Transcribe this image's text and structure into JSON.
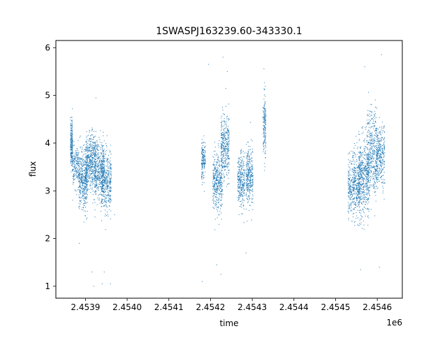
{
  "chart_data": {
    "type": "scatter",
    "title": "1SWASPJ163239.60-343330.1",
    "xlabel": "time",
    "ylabel": "flux",
    "x_offset_label": "1e6",
    "xlim": [
      2453829,
      2454660
    ],
    "ylim": [
      0.75,
      6.15
    ],
    "xticks": [
      {
        "value": 2453900,
        "label": "2.4539"
      },
      {
        "value": 2454000,
        "label": "2.4540"
      },
      {
        "value": 2454100,
        "label": "2.4541"
      },
      {
        "value": 2454200,
        "label": "2.4542"
      },
      {
        "value": 2454300,
        "label": "2.4543"
      },
      {
        "value": 2454400,
        "label": "2.4544"
      },
      {
        "value": 2454500,
        "label": "2.4545"
      },
      {
        "value": 2454600,
        "label": "2.4546"
      }
    ],
    "yticks": [
      {
        "value": 1,
        "label": "1"
      },
      {
        "value": 2,
        "label": "2"
      },
      {
        "value": 3,
        "label": "3"
      },
      {
        "value": 4,
        "label": "4"
      },
      {
        "value": 5,
        "label": "5"
      },
      {
        "value": 6,
        "label": "6"
      }
    ],
    "grid": false,
    "color": "#1f77b4",
    "marker": "small dots",
    "clusters": [
      {
        "t0": 2453864,
        "t1": 2453869,
        "center": 4.0,
        "spread": 0.25,
        "n": 220
      },
      {
        "t0": 2453869,
        "t1": 2453885,
        "center": 3.5,
        "spread": 0.2,
        "n": 180
      },
      {
        "t0": 2453884,
        "t1": 2453905,
        "center": 3.2,
        "spread": 0.3,
        "n": 420
      },
      {
        "t0": 2453900,
        "t1": 2453925,
        "center": 3.6,
        "spread": 0.3,
        "n": 480
      },
      {
        "t0": 2453922,
        "t1": 2453945,
        "center": 3.45,
        "spread": 0.3,
        "n": 420
      },
      {
        "t0": 2453938,
        "t1": 2453962,
        "center": 3.15,
        "spread": 0.32,
        "n": 420
      },
      {
        "t0": 2454178,
        "t1": 2454188,
        "center": 3.65,
        "spread": 0.2,
        "n": 160
      },
      {
        "t0": 2454205,
        "t1": 2454228,
        "center": 3.2,
        "spread": 0.3,
        "n": 380
      },
      {
        "t0": 2454225,
        "t1": 2454245,
        "center": 3.9,
        "spread": 0.35,
        "n": 380
      },
      {
        "t0": 2454265,
        "t1": 2454282,
        "center": 3.2,
        "spread": 0.28,
        "n": 300
      },
      {
        "t0": 2454285,
        "t1": 2454302,
        "center": 3.3,
        "spread": 0.3,
        "n": 320
      },
      {
        "t0": 2454326,
        "t1": 2454333,
        "center": 4.4,
        "spread": 0.35,
        "n": 160
      },
      {
        "t0": 2454530,
        "t1": 2454560,
        "center": 3.1,
        "spread": 0.35,
        "n": 480
      },
      {
        "t0": 2454555,
        "t1": 2454580,
        "center": 3.3,
        "spread": 0.4,
        "n": 480
      },
      {
        "t0": 2454575,
        "t1": 2454600,
        "center": 3.8,
        "spread": 0.45,
        "n": 420
      },
      {
        "t0": 2454598,
        "t1": 2454618,
        "center": 3.7,
        "spread": 0.3,
        "n": 320
      }
    ],
    "outliers": [
      {
        "x": 2453885,
        "y": 1.9
      },
      {
        "x": 2453915,
        "y": 1.3
      },
      {
        "x": 2453920,
        "y": 1.0
      },
      {
        "x": 2453925,
        "y": 4.95
      },
      {
        "x": 2453940,
        "y": 1.05
      },
      {
        "x": 2453945,
        "y": 1.3
      },
      {
        "x": 2453960,
        "y": 1.05
      },
      {
        "x": 2453970,
        "y": 2.5
      },
      {
        "x": 2454180,
        "y": 1.1
      },
      {
        "x": 2454195,
        "y": 5.65
      },
      {
        "x": 2454215,
        "y": 1.45
      },
      {
        "x": 2454225,
        "y": 1.25
      },
      {
        "x": 2454230,
        "y": 5.8
      },
      {
        "x": 2454240,
        "y": 5.5
      },
      {
        "x": 2454285,
        "y": 1.7
      },
      {
        "x": 2454570,
        "y": 5.6
      },
      {
        "x": 2454610,
        "y": 5.85
      },
      {
        "x": 2454605,
        "y": 1.4
      },
      {
        "x": 2454560,
        "y": 1.35
      }
    ]
  }
}
